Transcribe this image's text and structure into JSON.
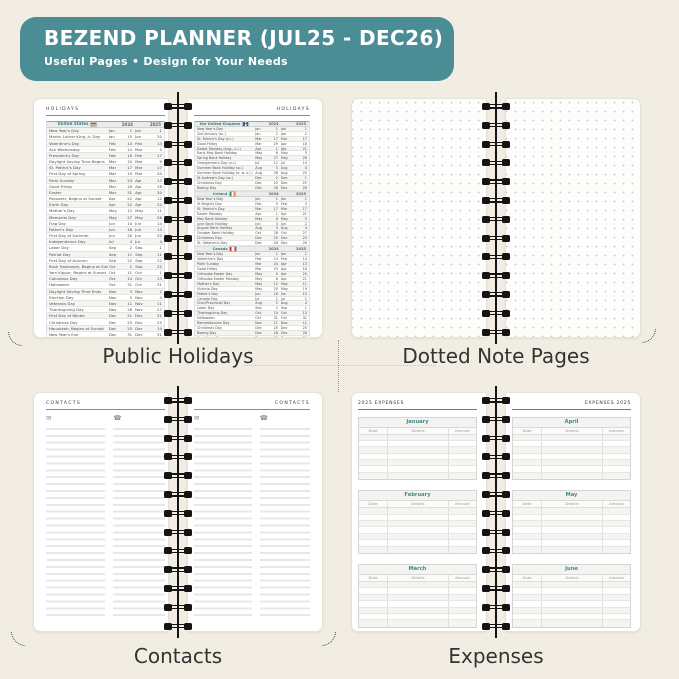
{
  "header": {
    "title": "BEZEND PLANNER (JUL25 - DEC26)",
    "subtitle": "Useful Pages  •  Design for Your Needs"
  },
  "captions": {
    "top_left": "Public Holidays",
    "top_right": "Dotted Note Pages",
    "bottom_left": "Contacts",
    "bottom_right": "Expenses"
  },
  "holidays": {
    "page_label": "HOLIDAYS",
    "year_columns": [
      "2024",
      "2025"
    ],
    "tables": [
      {
        "id": "us",
        "country": "United States",
        "flag_icon": "us-flag-icon",
        "rows": [
          [
            "New Year's Day",
            "Jan",
            "1",
            "Jan",
            "1"
          ],
          [
            "Martin Luther King, Jr. Day",
            "Jan",
            "15",
            "Jan",
            "20"
          ],
          [
            "Valentine's Day",
            "Feb",
            "14",
            "Feb",
            "14"
          ],
          [
            "Ash Wednesday",
            "Feb",
            "14",
            "Mar",
            "5"
          ],
          [
            "President's Day",
            "Feb",
            "19",
            "Feb",
            "17"
          ],
          [
            "Daylight Saving Time Begins",
            "Mar",
            "10",
            "Mar",
            "9"
          ],
          [
            "St. Patrick's Day",
            "Mar",
            "17",
            "Mar",
            "17"
          ],
          [
            "First Day of Spring",
            "Mar",
            "19",
            "Mar",
            "20"
          ],
          [
            "Palm Sunday",
            "Mar",
            "24",
            "Apr",
            "13"
          ],
          [
            "Good Friday",
            "Mar",
            "29",
            "Apr",
            "18"
          ],
          [
            "Easter",
            "Mar",
            "31",
            "Apr",
            "20"
          ],
          [
            "Passover, Begins at Sunset",
            "Apr",
            "22",
            "Apr",
            "12"
          ],
          [
            "Earth Day",
            "Apr",
            "22",
            "Apr",
            "22"
          ],
          [
            "Mother's Day",
            "May",
            "12",
            "May",
            "11"
          ],
          [
            "Memorial Day",
            "May",
            "27",
            "May",
            "26"
          ],
          [
            "Flag Day",
            "Jun",
            "14",
            "Jun",
            "14"
          ],
          [
            "Father's Day",
            "Jun",
            "16",
            "Jun",
            "15"
          ],
          [
            "First Day of Summer",
            "Jun",
            "20",
            "Jun",
            "20"
          ],
          [
            "Independence Day",
            "Jul",
            "4",
            "Jul",
            "4"
          ],
          [
            "Labor Day",
            "Sep",
            "2",
            "Sep",
            "1"
          ],
          [
            "Patriot Day",
            "Sep",
            "11",
            "Sep",
            "11"
          ],
          [
            "First Day of Autumn",
            "Sep",
            "22",
            "Sep",
            "22"
          ],
          [
            "Rosh Hashanah, Begins at Sunset",
            "Oct",
            "2",
            "Sep",
            "22"
          ],
          [
            "Yom Kippur, Begins at Sunset",
            "Oct",
            "11",
            "Oct",
            "1"
          ],
          [
            "Columbus Day",
            "Oct",
            "14",
            "Oct",
            "13"
          ],
          [
            "Halloween",
            "Oct",
            "31",
            "Oct",
            "31"
          ],
          [
            "Daylight Saving Time Ends",
            "Nov",
            "3",
            "Nov",
            "2"
          ],
          [
            "Election Day",
            "Nov",
            "5",
            "Nov",
            "4"
          ],
          [
            "Veterans Day",
            "Nov",
            "11",
            "Nov",
            "11"
          ],
          [
            "Thanksgiving Day",
            "Nov",
            "28",
            "Nov",
            "27"
          ],
          [
            "First Day of Winter",
            "Dec",
            "21",
            "Dec",
            "21"
          ],
          [
            "Christmas Day",
            "Dec",
            "25",
            "Dec",
            "25"
          ],
          [
            "Hanukkah, Begins at Sunset",
            "Dec",
            "25",
            "Dec",
            "14"
          ],
          [
            "New Year's Eve",
            "Dec",
            "31",
            "Dec",
            "31"
          ]
        ]
      },
      {
        "id": "uk",
        "country": "the United Kingdom",
        "flag_icon": "uk-flag-icon",
        "rows": [
          [
            "New Year's Day",
            "Jan",
            "1",
            "Jan",
            "1"
          ],
          [
            "2nd January (sc.)",
            "Jan",
            "2",
            "Jan",
            "2"
          ],
          [
            "St. Patrick's Day (n.i.)",
            "Mar",
            "17",
            "Mar",
            "17"
          ],
          [
            "Good Friday",
            "Mar",
            "29",
            "Apr",
            "18"
          ],
          [
            "Easter Monday (eng., n.i.)",
            "Apr",
            "1",
            "Apr",
            "21"
          ],
          [
            "Early May Bank Holiday",
            "May",
            "6",
            "May",
            "5"
          ],
          [
            "Spring Bank Holiday",
            "May",
            "27",
            "May",
            "26"
          ],
          [
            "Orangeman's Day (n.i.)",
            "Jul",
            "12",
            "Jul",
            "14"
          ],
          [
            "Summer Bank Holiday (sc.)",
            "Aug",
            "5",
            "Aug",
            "4"
          ],
          [
            "Summer Bank Holiday (e. w. n.i.)",
            "Aug",
            "26",
            "Aug",
            "25"
          ],
          [
            "St Andrew's Day (sc.)",
            "Dec",
            "2",
            "Dec",
            "1"
          ],
          [
            "Christmas Day",
            "Dec",
            "25",
            "Dec",
            "25"
          ],
          [
            "Boxing Day",
            "Dec",
            "26",
            "Dec",
            "26"
          ]
        ]
      },
      {
        "id": "ireland",
        "country": "Ireland",
        "flag_icon": "ireland-flag-icon",
        "rows": [
          [
            "New Year's Day",
            "Jan",
            "1",
            "Jan",
            "1"
          ],
          [
            "St Brigid's Day",
            "Feb",
            "5",
            "Feb",
            "3"
          ],
          [
            "St. Patrick's Day",
            "Mar",
            "17",
            "Mar",
            "17"
          ],
          [
            "Easter Monday",
            "Apr",
            "1",
            "Apr",
            "21"
          ],
          [
            "May Bank Holiday",
            "May",
            "6",
            "May",
            "5"
          ],
          [
            "June Bank Holiday",
            "Jun",
            "3",
            "Jun",
            "2"
          ],
          [
            "August Bank Holiday",
            "Aug",
            "5",
            "Aug",
            "4"
          ],
          [
            "October Bank Holiday",
            "Oct",
            "28",
            "Oct",
            "27"
          ],
          [
            "Christmas Day",
            "Dec",
            "25",
            "Dec",
            "25"
          ],
          [
            "St. Stephen's Day",
            "Dec",
            "26",
            "Dec",
            "26"
          ]
        ]
      },
      {
        "id": "canada",
        "country": "Canada",
        "flag_icon": "canada-flag-icon",
        "rows": [
          [
            "New Year's Day",
            "Jan",
            "1",
            "Jan",
            "1"
          ],
          [
            "Valentine's Day",
            "Feb",
            "14",
            "Feb",
            "14"
          ],
          [
            "Palm Sunday",
            "Mar",
            "24",
            "Apr",
            "13"
          ],
          [
            "Good Friday",
            "Mar",
            "29",
            "Apr",
            "18"
          ],
          [
            "Orthodox Easter Day",
            "May",
            "5",
            "Apr",
            "20"
          ],
          [
            "Orthodox Easter Monday",
            "May",
            "6",
            "Apr",
            "21"
          ],
          [
            "Mother's Day",
            "May",
            "12",
            "May",
            "11"
          ],
          [
            "Victoria Day",
            "May",
            "20",
            "May",
            "19"
          ],
          [
            "Father's Day",
            "Jun",
            "16",
            "Jun",
            "15"
          ],
          [
            "Canada Day",
            "Jul",
            "1",
            "Jul",
            "1"
          ],
          [
            "Civic/Provincial Day",
            "Aug",
            "5",
            "Aug",
            "4"
          ],
          [
            "Labor Day",
            "Sep",
            "2",
            "Sep",
            "1"
          ],
          [
            "Thanksgiving Day",
            "Oct",
            "14",
            "Oct",
            "13"
          ],
          [
            "Halloween",
            "Oct",
            "31",
            "Oct",
            "31"
          ],
          [
            "Remembrance Day",
            "Nov",
            "11",
            "Nov",
            "11"
          ],
          [
            "Christmas Day",
            "Dec",
            "25",
            "Dec",
            "25"
          ],
          [
            "Boxing Day",
            "Dec",
            "26",
            "Dec",
            "26"
          ],
          [
            "New Year's Eve",
            "Dec",
            "31",
            "Dec",
            "31"
          ]
        ]
      }
    ]
  },
  "contacts": {
    "page_label": "CONTACTS",
    "email_icon": "✉",
    "phone_icon": "☎"
  },
  "expenses": {
    "left_title": "2025 EXPENSES",
    "right_title": "EXPENSES 2025",
    "columns": [
      "Date",
      "Details",
      "Amount"
    ],
    "row_count": 7,
    "left_months": [
      "January",
      "February",
      "March"
    ],
    "right_months": [
      "April",
      "May",
      "June"
    ]
  },
  "colors": {
    "background": "#F2EDE2",
    "banner_teal": "#4B8D95",
    "accent_teal": "#47858D",
    "page_white": "#FFFFFF",
    "spiral_black": "#141414",
    "dot_gray": "#C7C7C7"
  }
}
